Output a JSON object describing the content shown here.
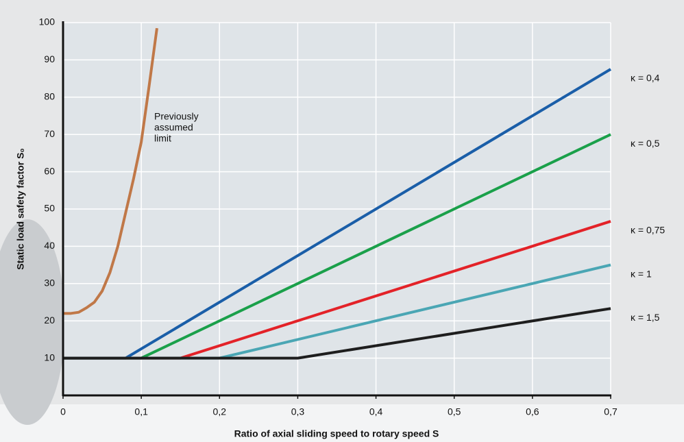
{
  "chart_data": {
    "type": "line",
    "xlabel": "Ratio of axial sliding speed to rotary speed S",
    "ylabel": "Static load safety factor S₀",
    "xlim": [
      0,
      0.7
    ],
    "ylim": [
      0,
      100
    ],
    "xticks": [
      0,
      {
        "value": 0.1,
        "label": "0,1"
      },
      {
        "value": 0.2,
        "label": "0,2"
      },
      {
        "value": 0.3,
        "label": "0,3"
      },
      {
        "value": 0.4,
        "label": "0,4"
      },
      {
        "value": 0.5,
        "label": "0,5"
      },
      {
        "value": 0.6,
        "label": "0,6"
      },
      {
        "value": 0.7,
        "label": "0,7"
      }
    ],
    "yticks": [
      10,
      20,
      30,
      40,
      50,
      60,
      70,
      80,
      90,
      100
    ],
    "grid": true,
    "annotation_lines": [
      "Previously",
      "assumed",
      "limit"
    ],
    "series": [
      {
        "color": "#c07848",
        "x": [
          0,
          0.01,
          0.02,
          0.03,
          0.04,
          0.05,
          0.06,
          0.07,
          0.08,
          0.09,
          0.1,
          0.11,
          0.12
        ],
        "values": [
          22,
          22,
          22.3,
          23.5,
          25,
          28,
          33,
          40,
          49,
          58,
          68,
          83,
          98.5
        ]
      },
      {
        "name": "κ = 0,4",
        "color": "#1a5ea8",
        "x": [
          0,
          0.08,
          0.7
        ],
        "values": [
          10,
          10,
          87.5
        ]
      },
      {
        "name": "κ = 0,5",
        "color": "#1aa04a",
        "x": [
          0,
          0.1,
          0.7
        ],
        "values": [
          10,
          10,
          70
        ]
      },
      {
        "name": "κ = 0,75",
        "color": "#e32228",
        "x": [
          0,
          0.15,
          0.7
        ],
        "values": [
          10,
          10,
          46.7
        ]
      },
      {
        "name": "κ = 1",
        "color": "#4aa6b4",
        "x": [
          0,
          0.2,
          0.7
        ],
        "values": [
          10,
          10,
          35
        ]
      },
      {
        "name": "κ = 1,5",
        "color": "#1e1e1e",
        "x": [
          0,
          0.3,
          0.7
        ],
        "values": [
          10,
          10,
          23.3
        ]
      }
    ]
  }
}
